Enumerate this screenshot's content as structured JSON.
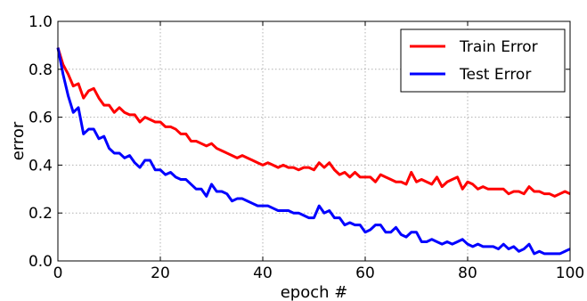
{
  "chart_data": {
    "type": "line",
    "title": "",
    "xlabel": "epoch #",
    "ylabel": "error",
    "xlim": [
      0,
      100
    ],
    "ylim": [
      0.0,
      1.0
    ],
    "xticks": [
      0,
      20,
      40,
      60,
      80,
      100
    ],
    "xtick_labels": [
      "0",
      "20",
      "40",
      "60",
      "80",
      "100"
    ],
    "yticks": [
      0.0,
      0.2,
      0.4,
      0.6,
      0.8,
      1.0
    ],
    "ytick_labels": [
      "0.0",
      "0.2",
      "0.4",
      "0.6",
      "0.8",
      "1.0"
    ],
    "grid": true,
    "legend_position": "top-right",
    "series": [
      {
        "name": "Train Error",
        "color": "#ff0000",
        "x": [
          0,
          1,
          2,
          3,
          4,
          5,
          6,
          7,
          8,
          9,
          10,
          11,
          12,
          13,
          14,
          15,
          16,
          17,
          18,
          19,
          20,
          21,
          22,
          23,
          24,
          25,
          26,
          27,
          28,
          29,
          30,
          31,
          32,
          33,
          34,
          35,
          36,
          37,
          38,
          39,
          40,
          41,
          42,
          43,
          44,
          45,
          46,
          47,
          48,
          49,
          50,
          51,
          52,
          53,
          54,
          55,
          56,
          57,
          58,
          59,
          60,
          61,
          62,
          63,
          64,
          65,
          66,
          67,
          68,
          69,
          70,
          71,
          72,
          73,
          74,
          75,
          76,
          77,
          78,
          79,
          80,
          81,
          82,
          83,
          84,
          85,
          86,
          87,
          88,
          89,
          90,
          91,
          92,
          93,
          94,
          95,
          96,
          97,
          98,
          99,
          100
        ],
        "y": [
          0.89,
          0.82,
          0.78,
          0.73,
          0.74,
          0.68,
          0.71,
          0.72,
          0.68,
          0.65,
          0.65,
          0.62,
          0.64,
          0.62,
          0.61,
          0.61,
          0.58,
          0.6,
          0.59,
          0.58,
          0.58,
          0.56,
          0.56,
          0.55,
          0.53,
          0.53,
          0.5,
          0.5,
          0.49,
          0.48,
          0.49,
          0.47,
          0.46,
          0.45,
          0.44,
          0.43,
          0.44,
          0.43,
          0.42,
          0.41,
          0.4,
          0.41,
          0.4,
          0.39,
          0.4,
          0.39,
          0.39,
          0.38,
          0.39,
          0.39,
          0.38,
          0.41,
          0.39,
          0.41,
          0.38,
          0.36,
          0.37,
          0.35,
          0.37,
          0.35,
          0.35,
          0.35,
          0.33,
          0.36,
          0.35,
          0.34,
          0.33,
          0.33,
          0.32,
          0.37,
          0.33,
          0.34,
          0.33,
          0.32,
          0.35,
          0.31,
          0.33,
          0.34,
          0.35,
          0.3,
          0.33,
          0.32,
          0.3,
          0.31,
          0.3,
          0.3,
          0.3,
          0.3,
          0.28,
          0.29,
          0.29,
          0.28,
          0.31,
          0.29,
          0.29,
          0.28,
          0.28,
          0.27,
          0.28,
          0.29,
          0.28
        ]
      },
      {
        "name": "Test Error",
        "color": "#0000ff",
        "x": [
          0,
          1,
          2,
          3,
          4,
          5,
          6,
          7,
          8,
          9,
          10,
          11,
          12,
          13,
          14,
          15,
          16,
          17,
          18,
          19,
          20,
          21,
          22,
          23,
          24,
          25,
          26,
          27,
          28,
          29,
          30,
          31,
          32,
          33,
          34,
          35,
          36,
          37,
          38,
          39,
          40,
          41,
          42,
          43,
          44,
          45,
          46,
          47,
          48,
          49,
          50,
          51,
          52,
          53,
          54,
          55,
          56,
          57,
          58,
          59,
          60,
          61,
          62,
          63,
          64,
          65,
          66,
          67,
          68,
          69,
          70,
          71,
          72,
          73,
          74,
          75,
          76,
          77,
          78,
          79,
          80,
          81,
          82,
          83,
          84,
          85,
          86,
          87,
          88,
          89,
          90,
          91,
          92,
          93,
          94,
          95,
          96,
          97,
          98,
          99,
          100
        ],
        "y": [
          0.89,
          0.78,
          0.69,
          0.62,
          0.64,
          0.53,
          0.55,
          0.55,
          0.51,
          0.52,
          0.47,
          0.45,
          0.45,
          0.43,
          0.44,
          0.41,
          0.39,
          0.42,
          0.42,
          0.38,
          0.38,
          0.36,
          0.37,
          0.35,
          0.34,
          0.34,
          0.32,
          0.3,
          0.3,
          0.27,
          0.32,
          0.29,
          0.29,
          0.28,
          0.25,
          0.26,
          0.26,
          0.25,
          0.24,
          0.23,
          0.23,
          0.23,
          0.22,
          0.21,
          0.21,
          0.21,
          0.2,
          0.2,
          0.19,
          0.18,
          0.18,
          0.23,
          0.2,
          0.21,
          0.18,
          0.18,
          0.15,
          0.16,
          0.15,
          0.15,
          0.12,
          0.13,
          0.15,
          0.15,
          0.12,
          0.12,
          0.14,
          0.11,
          0.1,
          0.12,
          0.12,
          0.08,
          0.08,
          0.09,
          0.08,
          0.07,
          0.08,
          0.07,
          0.08,
          0.09,
          0.07,
          0.06,
          0.07,
          0.06,
          0.06,
          0.06,
          0.05,
          0.07,
          0.05,
          0.06,
          0.04,
          0.05,
          0.07,
          0.03,
          0.04,
          0.03,
          0.03,
          0.03,
          0.03,
          0.04,
          0.05
        ]
      }
    ]
  }
}
